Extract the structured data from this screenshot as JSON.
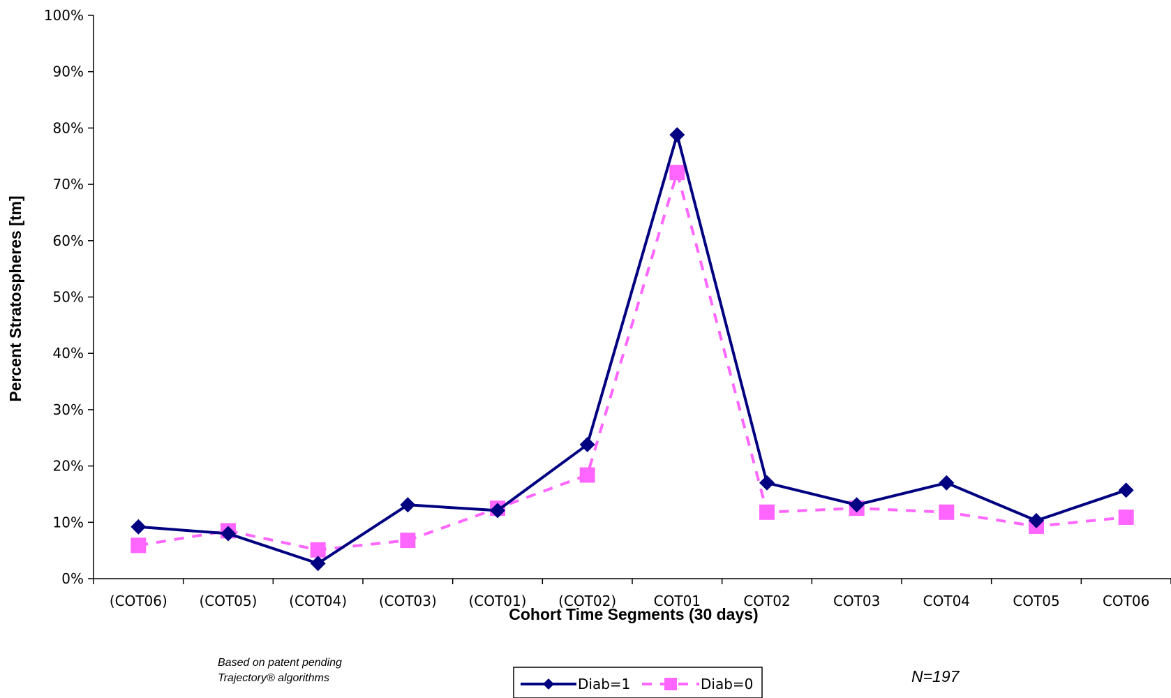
{
  "chart_data": {
    "type": "line",
    "title": "",
    "xlabel": "Cohort Time Segments (30 days)",
    "ylabel": "Percent Stratospheres [tm]",
    "ylim": [
      0,
      100
    ],
    "yticks": [
      "0%",
      "10%",
      "20%",
      "30%",
      "40%",
      "50%",
      "60%",
      "70%",
      "80%",
      "90%",
      "100%"
    ],
    "grid": false,
    "legend_position": "bottom-center",
    "categories": [
      "(COT06)",
      "(COT05)",
      "(COT04)",
      "(COT03)",
      "(COT01)",
      "(COT02)",
      "COT01",
      "COT02",
      "COT03",
      "COT04",
      "COT05",
      "COT06"
    ],
    "series": [
      {
        "name": "Diab=1",
        "color": "#000080",
        "marker": "diamond",
        "line": "solid",
        "values": [
          9.2,
          8.0,
          2.7,
          13.1,
          12.1,
          23.8,
          78.8,
          17.0,
          13.1,
          17.0,
          10.3,
          15.7
        ]
      },
      {
        "name": "Diab=0",
        "color": "#ff66ff",
        "marker": "square",
        "line": "dashed",
        "values": [
          5.9,
          8.5,
          5.1,
          6.8,
          12.5,
          18.4,
          72.1,
          11.8,
          12.5,
          11.8,
          9.3,
          10.9
        ]
      }
    ]
  },
  "notes": {
    "patent_line1": "Based on patent pending",
    "patent_line2": "Trajectory® algorithms",
    "sample_size": "N=197"
  }
}
